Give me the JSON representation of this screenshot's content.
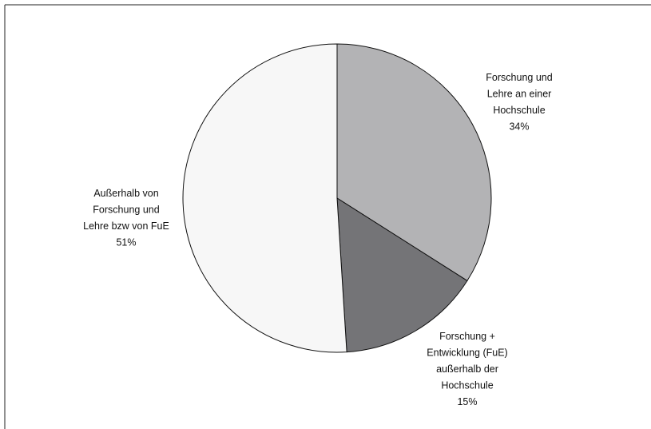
{
  "chart_data": {
    "type": "pie",
    "title": "",
    "start_angle_deg": 0,
    "direction": "clockwise",
    "slices": [
      {
        "label_lines": [
          "Forschung und",
          "Lehre an einer",
          "Hochschule"
        ],
        "value": 34,
        "value_label": "34%",
        "color": "#b3b3b5"
      },
      {
        "label_lines": [
          "Forschung +",
          "Entwicklung (FuE)",
          "außerhalb der",
          "Hochschule"
        ],
        "value": 15,
        "value_label": "15%",
        "color": "#747477"
      },
      {
        "label_lines": [
          "Außerhalb von",
          "Forschung und",
          "Lehre bzw von FuE"
        ],
        "value": 51,
        "value_label": "51%",
        "color": "#f7f7f7"
      }
    ]
  }
}
